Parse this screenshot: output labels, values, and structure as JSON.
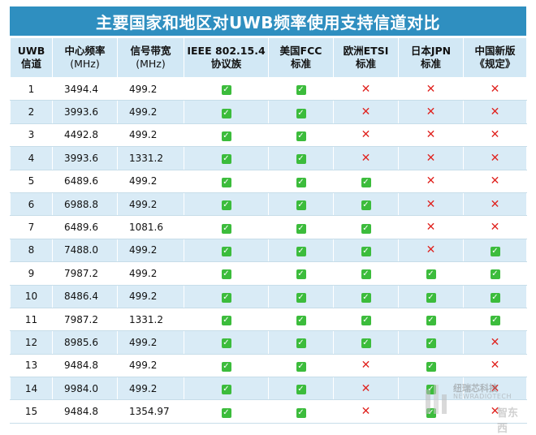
{
  "title": "主要国家和地区对UWB频率使用支持信道对比",
  "headers": [
    {
      "line1": "UWB",
      "line2": "信道"
    },
    {
      "line1": "中心频率",
      "line2": "(MHz)"
    },
    {
      "line1": "信号带宽",
      "line2": "(MHz)"
    },
    {
      "line1": "IEEE 802.15.4",
      "line2": "协议族"
    },
    {
      "line1": "美国FCC",
      "line2": "标准"
    },
    {
      "line1": "欧洲ETSI",
      "line2": "标准"
    },
    {
      "line1": "日本JPN",
      "line2": "标准"
    },
    {
      "line1": "中国新版",
      "line2": "《规定》"
    }
  ],
  "rows": [
    {
      "ch": "1",
      "freq": "3494.4",
      "bw": "499.2",
      "ieee": true,
      "fcc": true,
      "etsi": false,
      "jpn": false,
      "cn": false
    },
    {
      "ch": "2",
      "freq": "3993.6",
      "bw": "499.2",
      "ieee": true,
      "fcc": true,
      "etsi": false,
      "jpn": false,
      "cn": false
    },
    {
      "ch": "3",
      "freq": "4492.8",
      "bw": "499.2",
      "ieee": true,
      "fcc": true,
      "etsi": false,
      "jpn": false,
      "cn": false
    },
    {
      "ch": "4",
      "freq": "3993.6",
      "bw": "1331.2",
      "ieee": true,
      "fcc": true,
      "etsi": false,
      "jpn": false,
      "cn": false
    },
    {
      "ch": "5",
      "freq": "6489.6",
      "bw": "499.2",
      "ieee": true,
      "fcc": true,
      "etsi": true,
      "jpn": false,
      "cn": false
    },
    {
      "ch": "6",
      "freq": "6988.8",
      "bw": "499.2",
      "ieee": true,
      "fcc": true,
      "etsi": true,
      "jpn": false,
      "cn": false
    },
    {
      "ch": "7",
      "freq": "6489.6",
      "bw": "1081.6",
      "ieee": true,
      "fcc": true,
      "etsi": true,
      "jpn": false,
      "cn": false
    },
    {
      "ch": "8",
      "freq": "7488.0",
      "bw": "499.2",
      "ieee": true,
      "fcc": true,
      "etsi": true,
      "jpn": false,
      "cn": true
    },
    {
      "ch": "9",
      "freq": "7987.2",
      "bw": "499.2",
      "ieee": true,
      "fcc": true,
      "etsi": true,
      "jpn": true,
      "cn": true
    },
    {
      "ch": "10",
      "freq": "8486.4",
      "bw": "499.2",
      "ieee": true,
      "fcc": true,
      "etsi": true,
      "jpn": true,
      "cn": true
    },
    {
      "ch": "11",
      "freq": "7987.2",
      "bw": "1331.2",
      "ieee": true,
      "fcc": true,
      "etsi": true,
      "jpn": true,
      "cn": true
    },
    {
      "ch": "12",
      "freq": "8985.6",
      "bw": "499.2",
      "ieee": true,
      "fcc": true,
      "etsi": true,
      "jpn": true,
      "cn": false
    },
    {
      "ch": "13",
      "freq": "9484.8",
      "bw": "499.2",
      "ieee": true,
      "fcc": true,
      "etsi": false,
      "jpn": true,
      "cn": false
    },
    {
      "ch": "14",
      "freq": "9984.0",
      "bw": "499.2",
      "ieee": true,
      "fcc": true,
      "etsi": false,
      "jpn": true,
      "cn": false
    },
    {
      "ch": "15",
      "freq": "9484.8",
      "bw": "1354.97",
      "ieee": true,
      "fcc": true,
      "etsi": false,
      "jpn": true,
      "cn": false
    }
  ],
  "marks": {
    "yes": "✓",
    "no": "✕",
    "yes_icon": "check-icon",
    "no_icon": "cross-icon"
  },
  "colors": {
    "title_bg": "#2f8fc0",
    "header_bg": "#d2e8f5",
    "stripe": "#d9ebf6",
    "yes": "#3cbc3c",
    "no": "#e0231f"
  },
  "watermark": {
    "cn": "纽瑞芯科技",
    "en": "NEWRADIOTECH",
    "logo": "智东西"
  }
}
